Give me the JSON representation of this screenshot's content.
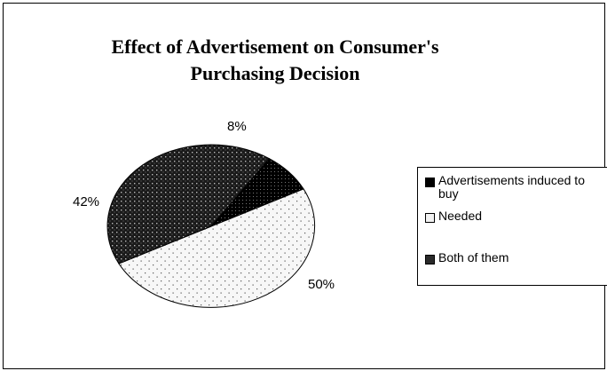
{
  "chart_data": {
    "type": "pie",
    "title": "Effect of Advertisement on Consumer's Purchasing Decision",
    "title_lines": [
      "Effect of Advertisement on Consumer's",
      "Purchasing Decision"
    ],
    "slices": [
      {
        "label": "Advertisements induced to buy",
        "value": 8,
        "value_label": "8%",
        "pattern": "dense-black"
      },
      {
        "label": "Needed",
        "value": 50,
        "value_label": "50%",
        "pattern": "sparse-dots"
      },
      {
        "label": "Both of them",
        "value": 42,
        "value_label": "42%",
        "pattern": "dark-dots"
      }
    ],
    "legend_position": "right"
  }
}
